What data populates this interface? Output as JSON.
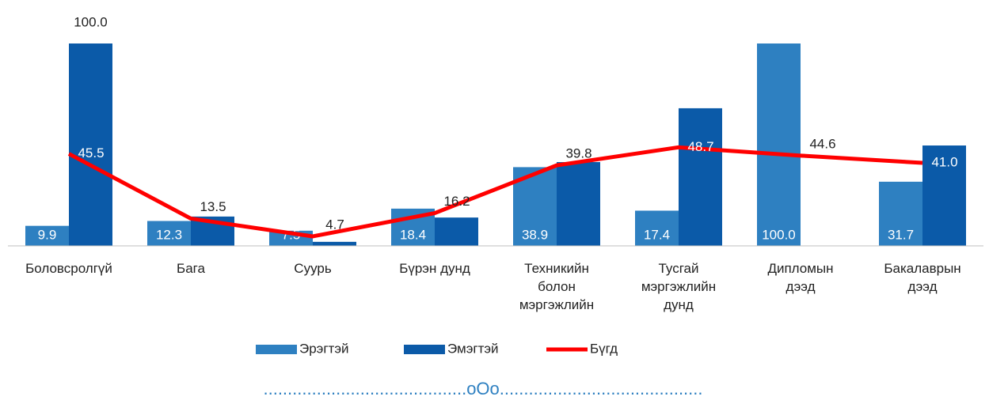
{
  "chart_data": {
    "type": "bar-line",
    "categories": [
      "Боловсролгүй",
      "Бага",
      "Суурь",
      "Бүрэн дунд",
      "Техникийн болон мэргэжлийн",
      "Тусгай мэргэжлийн дунд",
      "Дипломын дээд",
      "Бакалаврын дээд"
    ],
    "series": [
      {
        "name": "Эрэгтэй",
        "type": "bar",
        "color": "#2e80c1",
        "values": [
          9.9,
          12.3,
          7.5,
          18.4,
          38.9,
          17.4,
          100.0,
          31.7
        ],
        "value_labels": [
          "9.9",
          "12.3",
          "7.5",
          "18.4",
          "38.9",
          "17.4",
          "100.0",
          "31.7"
        ]
      },
      {
        "name": "Эмэгтэй",
        "type": "bar",
        "color": "#0b5aa8",
        "values": [
          100.0,
          14.5,
          2,
          14,
          41.4,
          68,
          0,
          49.6
        ],
        "value_labels": [
          "100.0",
          null,
          null,
          null,
          null,
          null,
          null,
          null
        ]
      },
      {
        "name": "Бүгд",
        "type": "line",
        "color": "#ff0000",
        "values": [
          45.5,
          13.5,
          4.7,
          16.2,
          39.8,
          48.7,
          44.6,
          41.0
        ],
        "value_labels": [
          "45.5",
          "13.5",
          "4.7",
          "16.2",
          "39.8",
          "48.7",
          "44.6",
          "41.0"
        ]
      }
    ],
    "ylim": [
      0,
      100
    ],
    "grid": false
  },
  "footer": "..........................................oOo.........................................."
}
